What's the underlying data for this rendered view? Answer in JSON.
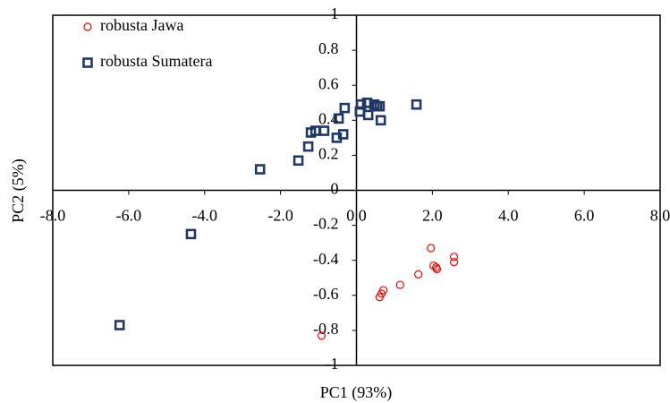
{
  "chart_data": {
    "type": "scatter",
    "x_label": "PC1 (93%)",
    "y_label": "PC2 (5%)",
    "xlim": [
      -8,
      8
    ],
    "ylim": [
      -1,
      1
    ],
    "xticks": [
      {
        "value": -8,
        "label": "-8.0"
      },
      {
        "value": -6,
        "label": "-6.0"
      },
      {
        "value": -4,
        "label": "-4.0"
      },
      {
        "value": -2,
        "label": "-2.0"
      },
      {
        "value": 0,
        "label": "0.0"
      },
      {
        "value": 2,
        "label": "2.0"
      },
      {
        "value": 4,
        "label": "4.0"
      },
      {
        "value": 6,
        "label": "6.0"
      },
      {
        "value": 8,
        "label": "8.0"
      }
    ],
    "yticks": [
      -1,
      -0.8,
      -0.6,
      -0.4,
      -0.2,
      0,
      0.2,
      0.4,
      0.6,
      0.8,
      1
    ],
    "legend": "top-left",
    "series": [
      {
        "name": "robusta Jawa",
        "color": "#ff0000",
        "marker": "circle",
        "x": [
          2.57,
          2.57,
          1.96,
          2.03,
          2.1,
          2.12,
          1.63,
          1.15,
          0.71,
          0.66,
          0.61,
          -0.92
        ],
        "values": [
          -0.38,
          -0.41,
          -0.33,
          -0.43,
          -0.44,
          -0.45,
          -0.48,
          -0.54,
          -0.57,
          -0.59,
          -0.61,
          -0.83
        ]
      },
      {
        "name": "robusta Sumatera",
        "color": "#1f3864",
        "marker": "square",
        "x": [
          -6.24,
          -4.36,
          -2.54,
          -1.53,
          -1.27,
          -1.2,
          -1.08,
          -0.85,
          -0.52,
          -0.35,
          -0.47,
          -0.31,
          0.12,
          0.09,
          0.28,
          0.31,
          0.47,
          0.54,
          0.61,
          0.64,
          1.58
        ],
        "values": [
          -0.77,
          -0.25,
          0.12,
          0.17,
          0.25,
          0.33,
          0.34,
          0.34,
          0.3,
          0.32,
          0.41,
          0.47,
          0.49,
          0.45,
          0.5,
          0.43,
          0.49,
          0.48,
          0.48,
          0.4,
          0.49
        ]
      }
    ]
  }
}
